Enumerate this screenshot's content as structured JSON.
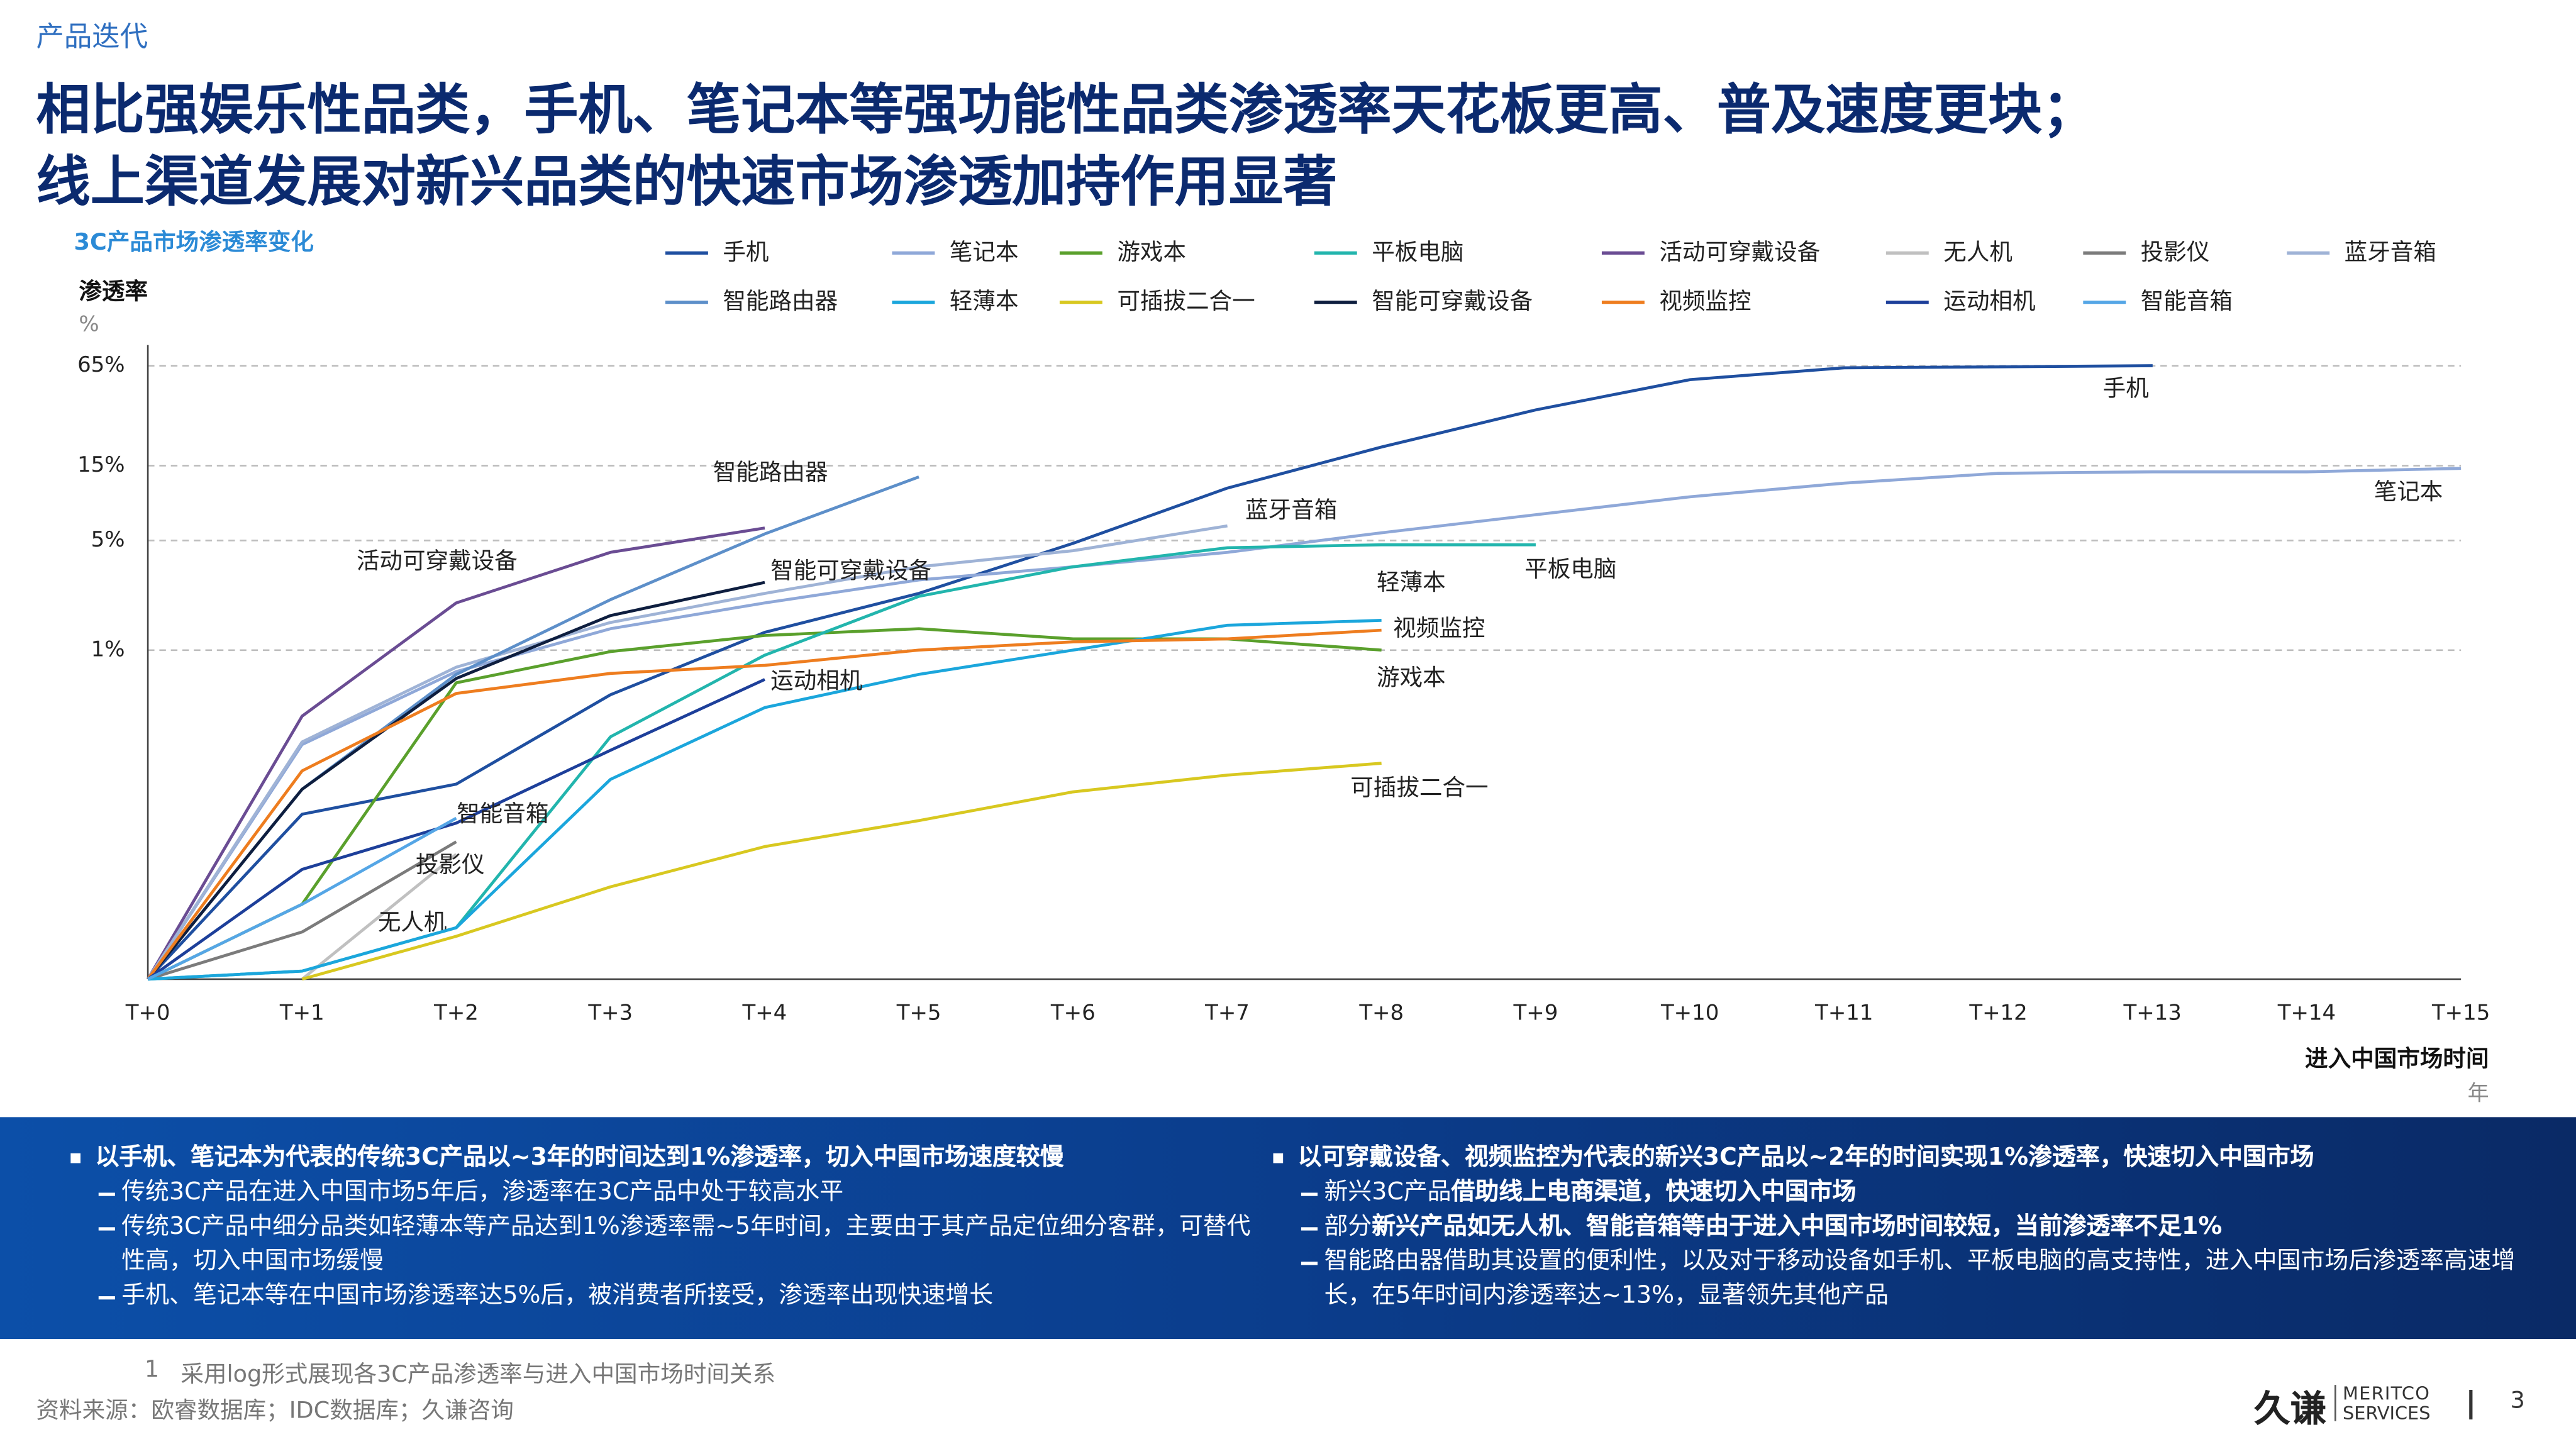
{
  "header": {
    "section": "产品迭代",
    "title_lines": [
      "相比强娱乐性品类，手机、笔记本等强功能性品类渗透率天花板更高、普及速度更块；",
      "线上渠道发展对新兴品类的快速市场渗透加持作用显著"
    ]
  },
  "chart_data": {
    "type": "line",
    "title": "3C产品市场渗透率变化",
    "y_label": "渗透率",
    "y_unit": "%",
    "x_label": "进入中国市场时间",
    "x_unit": "年",
    "log_scale": true,
    "grid": true,
    "categories": [
      "T+0",
      "T+1",
      "T+2",
      "T+3",
      "T+4",
      "T+5",
      "T+6",
      "T+7",
      "T+8",
      "T+9",
      "T+10",
      "T+11",
      "T+12",
      "T+13",
      "T+14",
      "T+15"
    ],
    "ylim": [
      0.008,
      80
    ],
    "yticks": [
      {
        "value": 1,
        "label": "1%"
      },
      {
        "value": 5,
        "label": "5%"
      },
      {
        "value": 15,
        "label": "15%"
      },
      {
        "value": 65,
        "label": "65%"
      }
    ],
    "series": [
      {
        "name": "手机",
        "color": "#1f4fa0",
        "values": [
          0.008,
          0.09,
          0.14,
          0.52,
          1.3,
          2.3,
          4.8,
          10.8,
          19.7,
          34,
          53,
          63,
          64,
          65,
          null,
          null
        ]
      },
      {
        "name": "笔记本",
        "color": "#8fa8d8",
        "values": [
          0.008,
          0.25,
          0.73,
          1.37,
          2.0,
          2.8,
          3.4,
          4.2,
          5.6,
          7.3,
          9.5,
          11.6,
          13.4,
          13.7,
          13.7,
          14.4
        ]
      },
      {
        "name": "游戏本",
        "color": "#5aa02c",
        "values": [
          0.008,
          0.024,
          0.62,
          0.98,
          1.24,
          1.37,
          1.18,
          1.18,
          1.0,
          null,
          null,
          null,
          null,
          null,
          null,
          null
        ]
      },
      {
        "name": "平板电脑",
        "color": "#22b5ad",
        "values": [
          0.008,
          0.009,
          0.017,
          0.28,
          0.93,
          2.2,
          3.4,
          4.5,
          4.7,
          4.7,
          null,
          null,
          null,
          null,
          null,
          null
        ]
      },
      {
        "name": "活动可穿戴设备",
        "color": "#6a4c93",
        "values": [
          0.008,
          0.38,
          2.0,
          4.2,
          6.0,
          null,
          null,
          null,
          null,
          null,
          null,
          null,
          null,
          null,
          null,
          null
        ]
      },
      {
        "name": "无人机",
        "color": "#c0c0c0",
        "values": [
          null,
          0.008,
          0.05,
          null,
          null,
          null,
          null,
          null,
          null,
          null,
          null,
          null,
          null,
          null,
          null,
          null
        ]
      },
      {
        "name": "投影仪",
        "color": "#7b7b7b",
        "values": [
          0.008,
          0.016,
          0.06,
          null,
          null,
          null,
          null,
          null,
          null,
          null,
          null,
          null,
          null,
          null,
          null,
          null
        ]
      },
      {
        "name": "蓝牙音箱",
        "color": "#9fb3d6",
        "values": [
          0.008,
          0.26,
          0.78,
          1.5,
          2.3,
          3.4,
          4.3,
          6.2,
          null,
          null,
          null,
          null,
          null,
          null,
          null,
          null
        ]
      },
      {
        "name": "智能路由器",
        "color": "#5d8fc9",
        "values": [
          0.008,
          0.13,
          0.7,
          2.1,
          5.5,
          12.7,
          null,
          null,
          null,
          null,
          null,
          null,
          null,
          null,
          null,
          null
        ]
      },
      {
        "name": "轻薄本",
        "color": "#1ba6dc",
        "values": [
          0.008,
          0.009,
          0.017,
          0.15,
          0.43,
          0.7,
          1.0,
          1.44,
          1.55,
          null,
          null,
          null,
          null,
          null,
          null,
          null
        ]
      },
      {
        "name": "可插拔二合一",
        "color": "#d8c820",
        "values": [
          null,
          0.008,
          0.015,
          0.031,
          0.056,
          0.082,
          0.125,
          0.16,
          0.19,
          null,
          null,
          null,
          null,
          null,
          null,
          null
        ]
      },
      {
        "name": "智能可穿戴设备",
        "color": "#0e1e3f",
        "values": [
          0.008,
          0.13,
          0.66,
          1.66,
          2.7,
          null,
          null,
          null,
          null,
          null,
          null,
          null,
          null,
          null,
          null,
          null
        ]
      },
      {
        "name": "视频监控",
        "color": "#ee7d1f",
        "values": [
          0.008,
          0.17,
          0.53,
          0.71,
          0.8,
          1.0,
          1.13,
          1.18,
          1.34,
          null,
          null,
          null,
          null,
          null,
          null,
          null
        ]
      },
      {
        "name": "运动相机",
        "color": "#1d3f9a",
        "values": [
          0.008,
          0.04,
          0.079,
          0.23,
          0.65,
          null,
          null,
          null,
          null,
          null,
          null,
          null,
          null,
          null,
          null,
          null
        ]
      },
      {
        "name": "智能音箱",
        "color": "#55a6e6",
        "values": [
          0.008,
          0.024,
          0.085,
          null,
          null,
          null,
          null,
          null,
          null,
          null,
          null,
          null,
          null,
          null,
          null,
          null
        ]
      }
    ]
  },
  "notes": [
    {
      "heading": "以手机、笔记本为代表的传统3C产品以~3年的时间达到1%渗透率，切入中国市场速度较慢",
      "items": [
        [
          {
            "text": "传统3C产品在进入中国市场5年后，渗透率在3C产品中处于较高水平",
            "bold": false
          }
        ],
        [
          {
            "text": "传统3C产品中细分品类如轻薄本等产品达到1%渗透率需~5年时间，主要由于其产品定位细分客群，可替代性高，切入中国市场缓慢",
            "bold": false
          }
        ],
        [
          {
            "text": "手机、笔记本等在中国市场渗透率达5%后，被消费者所接受，渗透率出现快速增长",
            "bold": false
          }
        ]
      ]
    },
    {
      "heading": "以可穿戴设备、视频监控为代表的新兴3C产品以~2年的时间实现1%渗透率，快速切入中国市场",
      "items": [
        [
          {
            "text": "新兴3C产品",
            "bold": false
          },
          {
            "text": "借助线上电商渠道，快速切入中国市场",
            "bold": true
          }
        ],
        [
          {
            "text": "部分",
            "bold": false
          },
          {
            "text": "新兴产品如无人机、智能音箱等由于进入中国市场时间较短，当前渗透率不足1%",
            "bold": true
          }
        ],
        [
          {
            "text": "智能路由器借助其设置的便利性，以及对于移动设备如手机、平板电脑的高支持性，进入中国市场后渗透率高速增长，在5年时间内渗透率达~13%，显著领先其他产品",
            "bold": false
          }
        ]
      ]
    }
  ],
  "footnote": {
    "number": 1,
    "text": "采用log形式展现各3C产品渗透率与进入中国市场时间关系"
  },
  "source": "资料来源：欧睿数据库；IDC数据库；久谦咨询",
  "logo": {
    "cn": "久谦",
    "en_top": "MERITCO",
    "en_bottom": "SERVICES"
  },
  "page": 3
}
